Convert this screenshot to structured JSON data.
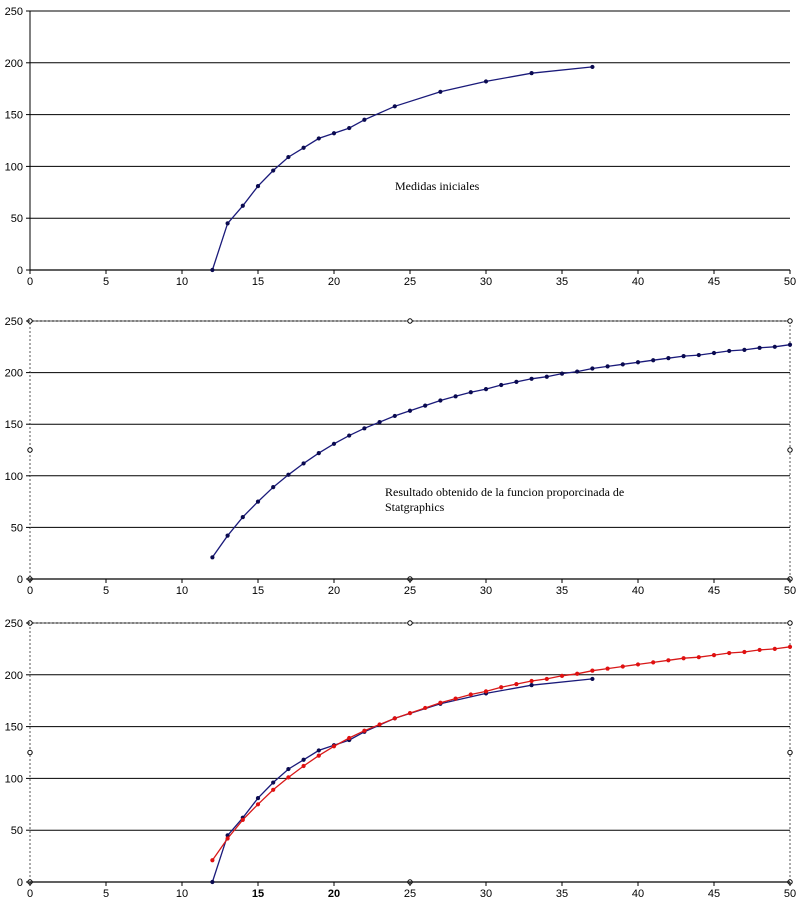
{
  "chart_data": [
    {
      "type": "line",
      "xlim": [
        0,
        50
      ],
      "ylim": [
        0,
        250
      ],
      "xticks": [
        "0",
        "5",
        "10",
        "15",
        "20",
        "25",
        "30",
        "35",
        "40",
        "45",
        "50"
      ],
      "yticks": [
        "0",
        "50",
        "100",
        "150",
        "200",
        "250"
      ],
      "grid": "horizontal",
      "annotation": "Medidas iniciales",
      "series": [
        {
          "color": "#1a1a7a",
          "marker_color": "#0a0a50",
          "x": [
            12,
            13,
            14,
            15,
            16,
            17,
            18,
            19,
            20,
            21,
            22,
            24,
            27,
            30,
            33,
            37
          ],
          "y": [
            0,
            45,
            62,
            81,
            96,
            109,
            118,
            127,
            132,
            137,
            145,
            158,
            172,
            182,
            190,
            196
          ]
        }
      ]
    },
    {
      "type": "line",
      "xlim": [
        0,
        50
      ],
      "ylim": [
        0,
        250
      ],
      "xticks": [
        "0",
        "5",
        "10",
        "15",
        "20",
        "25",
        "30",
        "35",
        "40",
        "45",
        "50"
      ],
      "yticks": [
        "0",
        "50",
        "100",
        "150",
        "200",
        "250"
      ],
      "grid": "horizontal",
      "annotation": [
        "Resultado obtenido de la funcion proporcinada de",
        "Statgraphics"
      ],
      "series": [
        {
          "color": "#1a1a7a",
          "marker_color": "#0a0a50",
          "x": [
            12,
            13,
            14,
            15,
            16,
            17,
            18,
            19,
            20,
            21,
            22,
            23,
            24,
            25,
            26,
            27,
            28,
            29,
            30,
            31,
            32,
            33,
            34,
            35,
            36,
            37,
            38,
            39,
            40,
            41,
            42,
            43,
            44,
            45,
            46,
            47,
            48,
            49,
            50
          ],
          "y": [
            21,
            42,
            60,
            75,
            89,
            101,
            112,
            122,
            131,
            139,
            146,
            152,
            158,
            163,
            168,
            173,
            177,
            181,
            184,
            188,
            191,
            194,
            196,
            199,
            201,
            204,
            206,
            208,
            210,
            212,
            214,
            216,
            217,
            219,
            221,
            222,
            224,
            225,
            227
          ]
        }
      ]
    },
    {
      "type": "line",
      "xlim": [
        0,
        50
      ],
      "ylim": [
        0,
        250
      ],
      "xticks": [
        "0",
        "5",
        "10",
        "15",
        "20",
        "25",
        "30",
        "35",
        "40",
        "45",
        "50"
      ],
      "bold_xticks": [
        "15",
        "20"
      ],
      "yticks": [
        "0",
        "50",
        "100",
        "150",
        "200",
        "250"
      ],
      "grid": "horizontal",
      "series": [
        {
          "color": "#1a1a7a",
          "marker_color": "#0a0a50",
          "x": [
            12,
            13,
            14,
            15,
            16,
            17,
            18,
            19,
            20,
            21,
            22,
            24,
            27,
            30,
            33,
            37
          ],
          "y": [
            0,
            45,
            62,
            81,
            96,
            109,
            118,
            127,
            132,
            137,
            145,
            158,
            172,
            182,
            190,
            196
          ]
        },
        {
          "color": "#d81818",
          "marker_color": "#e01010",
          "x": [
            12,
            13,
            14,
            15,
            16,
            17,
            18,
            19,
            20,
            21,
            22,
            23,
            24,
            25,
            26,
            27,
            28,
            29,
            30,
            31,
            32,
            33,
            34,
            35,
            36,
            37,
            38,
            39,
            40,
            41,
            42,
            43,
            44,
            45,
            46,
            47,
            48,
            49,
            50
          ],
          "y": [
            21,
            42,
            60,
            75,
            89,
            101,
            112,
            122,
            131,
            139,
            146,
            152,
            158,
            163,
            168,
            173,
            177,
            181,
            184,
            188,
            191,
            194,
            196,
            199,
            201,
            204,
            206,
            208,
            210,
            212,
            214,
            216,
            217,
            219,
            221,
            222,
            224,
            225,
            227
          ]
        }
      ]
    }
  ]
}
